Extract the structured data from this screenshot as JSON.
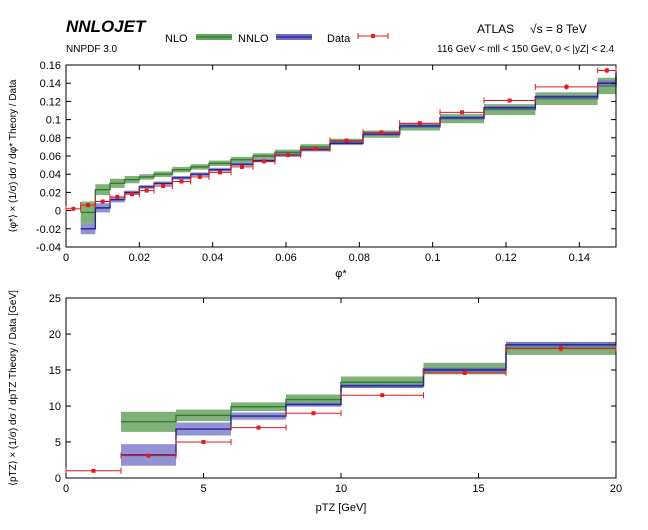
{
  "header": {
    "generator": "NNLOJET",
    "pdf": "NNPDF 3.0",
    "experiment": "ATLAS",
    "energy": "√s = 8 TeV",
    "cuts": "116 GeV < mll < 150 GeV,  0 < |yZ| < 2.4"
  },
  "legend": {
    "nlo": "NLO",
    "nnlo": "NNLO",
    "data": "Data"
  },
  "colors": {
    "nlo_band": "#6aa360",
    "nlo_line": "#2e7d32",
    "nnlo_band": "#6f6fc4",
    "nnlo_line": "#23238e",
    "data": "#e41a1c"
  },
  "chart_data": [
    {
      "type": "line",
      "xlabel": "φ*",
      "ylabel": "⟨φ*⟩ × (1/σ) dσ / dφ*   Theory / Data",
      "xlim": [
        0,
        0.15
      ],
      "ylim": [
        -0.04,
        0.16
      ],
      "xticks": [
        "0",
        "0.02",
        "0.04",
        "0.06",
        "0.08",
        "0.1",
        "0.12",
        "0.14"
      ],
      "yticks": [
        "-0.04",
        "-0.02",
        "0",
        "0.02",
        "0.04",
        "0.06",
        "0.08",
        "0.1",
        "0.12",
        "0.14",
        "0.16"
      ],
      "bins": [
        0,
        0.004,
        0.008,
        0.012,
        0.016,
        0.02,
        0.024,
        0.029,
        0.034,
        0.039,
        0.045,
        0.051,
        0.057,
        0.064,
        0.072,
        0.081,
        0.091,
        0.102,
        0.114,
        0.128,
        0.145,
        0.15
      ],
      "nlo": [
        null,
        -0.002,
        0.023,
        0.03,
        0.034,
        0.037,
        0.04,
        0.045,
        0.048,
        0.052,
        0.056,
        0.06,
        0.064,
        0.07,
        0.076,
        0.084,
        0.092,
        0.101,
        0.111,
        0.123,
        0.137,
        0.147
      ],
      "nlo_err": [
        null,
        0.012,
        0.006,
        0.005,
        0.004,
        0.003,
        0.003,
        0.003,
        0.003,
        0.003,
        0.003,
        0.003,
        0.003,
        0.003,
        0.003,
        0.004,
        0.004,
        0.005,
        0.006,
        0.007,
        0.009,
        0.01
      ],
      "nnlo": [
        null,
        -0.02,
        0.003,
        0.012,
        0.02,
        0.026,
        0.03,
        0.036,
        0.04,
        0.045,
        0.051,
        0.055,
        0.061,
        0.067,
        0.074,
        0.084,
        0.093,
        0.102,
        0.113,
        0.125,
        0.14,
        0.153
      ],
      "nnlo_err": [
        null,
        0.006,
        0.005,
        0.003,
        0.002,
        0.002,
        0.002,
        0.002,
        0.002,
        0.002,
        0.002,
        0.002,
        0.002,
        0.002,
        0.002,
        0.002,
        0.002,
        0.002,
        0.002,
        0.002,
        0.003,
        0.003
      ],
      "data_x": [
        0.002,
        0.006,
        0.01,
        0.014,
        0.018,
        0.022,
        0.0265,
        0.0315,
        0.0365,
        0.042,
        0.048,
        0.054,
        0.0605,
        0.068,
        0.0765,
        0.086,
        0.0965,
        0.108,
        0.121,
        0.1365,
        0.1475
      ],
      "data_xerr": [
        0.002,
        0.002,
        0.002,
        0.002,
        0.002,
        0.002,
        0.0025,
        0.0025,
        0.0025,
        0.003,
        0.003,
        0.003,
        0.0035,
        0.004,
        0.0045,
        0.005,
        0.0055,
        0.006,
        0.007,
        0.0085,
        0.0025
      ],
      "data_y": [
        0.002,
        0.006,
        0.01,
        0.015,
        0.018,
        0.022,
        0.027,
        0.032,
        0.037,
        0.042,
        0.048,
        0.054,
        0.061,
        0.068,
        0.077,
        0.086,
        0.096,
        0.108,
        0.121,
        0.136,
        0.154
      ],
      "data_yerr": [
        0.001,
        0.001,
        0.001,
        0.001,
        0.001,
        0.001,
        0.001,
        0.001,
        0.001,
        0.001,
        0.001,
        0.001,
        0.001,
        0.001,
        0.001,
        0.001,
        0.002,
        0.002,
        0.002,
        0.003,
        0.003
      ]
    },
    {
      "type": "line",
      "xlabel": "pTZ [GeV]",
      "ylabel": "⟨pTZ⟩ × (1/σ) dσ / dpTZ   Theory / Data   [GeV]",
      "xlim": [
        0,
        20
      ],
      "ylim": [
        0,
        25
      ],
      "xticks": [
        "0",
        "5",
        "10",
        "15",
        "20"
      ],
      "yticks": [
        "0",
        "5",
        "10",
        "15",
        "20",
        "25"
      ],
      "bins": [
        0,
        2,
        4,
        6,
        8,
        10,
        13,
        16,
        20
      ],
      "nlo": [
        null,
        7.8,
        8.7,
        9.9,
        10.9,
        13.3,
        15.2,
        18.0
      ],
      "nlo_err": [
        null,
        1.4,
        0.8,
        0.6,
        0.7,
        0.8,
        0.8,
        0.9
      ],
      "nnlo": [
        null,
        3.2,
        6.8,
        8.6,
        10.2,
        12.8,
        15.0,
        18.5
      ],
      "nnlo_err": [
        null,
        1.5,
        0.9,
        0.5,
        0.3,
        0.3,
        0.3,
        0.4
      ],
      "data_x": [
        1,
        3,
        5,
        7,
        9,
        11.5,
        14.5,
        18
      ],
      "data_xerr": [
        1,
        1,
        1,
        1,
        1,
        1.5,
        1.5,
        2
      ],
      "data_y": [
        1.0,
        3.1,
        5.0,
        7.0,
        9.0,
        11.5,
        14.6,
        18.0
      ],
      "data_yerr": [
        0.1,
        0.1,
        0.1,
        0.1,
        0.2,
        0.2,
        0.3,
        0.4
      ]
    }
  ]
}
